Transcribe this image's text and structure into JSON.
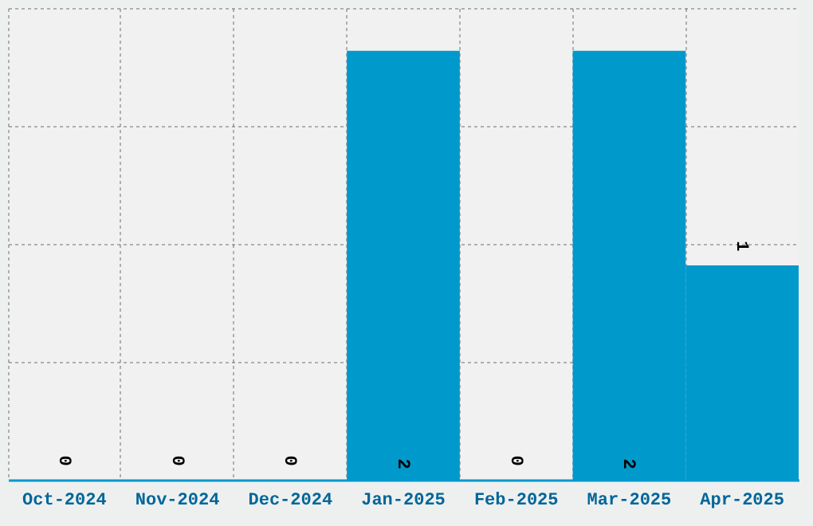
{
  "chart_data": {
    "type": "bar",
    "categories": [
      "Oct-2024",
      "Nov-2024",
      "Dec-2024",
      "Jan-2025",
      "Feb-2025",
      "Mar-2025",
      "Apr-2025"
    ],
    "values": [
      0,
      0,
      0,
      2,
      0,
      2,
      1
    ],
    "color": "#0099cc",
    "ylim": [
      0,
      2.2
    ],
    "yticks": [
      {
        "value": 0,
        "label": null
      },
      {
        "value": 0.55,
        "label": null
      },
      {
        "value": 1.1,
        "label": null
      },
      {
        "value": 1.65,
        "label": null
      },
      {
        "value": 2.2,
        "label": null
      }
    ],
    "grid": true,
    "tick_labels": "x",
    "data_labels": true
  }
}
